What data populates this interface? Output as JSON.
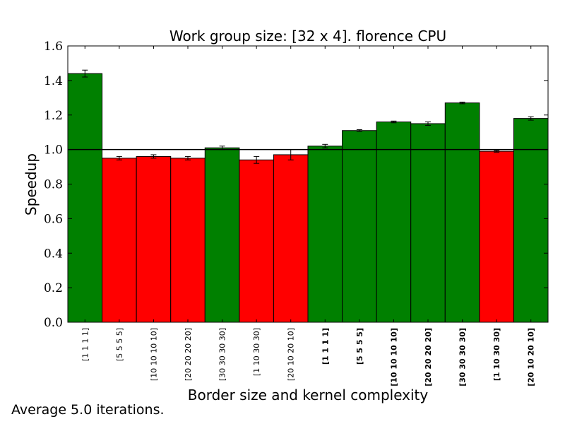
{
  "chart_data": {
    "type": "bar",
    "title": "Work group size: [32 x 4]. florence CPU",
    "xlabel": "Border size and kernel complexity",
    "ylabel": "Speedup",
    "ylim": [
      0,
      1.6
    ],
    "yticks": [
      "0.0",
      "0.2",
      "0.4",
      "0.6",
      "0.8",
      "1.0",
      "1.2",
      "1.4",
      "1.6"
    ],
    "reference_line": 1.0,
    "grid": false,
    "categories": [
      "[1 1 1 1]",
      "[5 5 5 5]",
      "[10 10 10 10]",
      "[20 20 20 20]",
      "[30 30 30 30]",
      "[1 10 30 30]",
      "[20 10 20 10]",
      "[1 1 1 1]",
      "[5 5 5 5]",
      "[10 10 10 10]",
      "[20 20 20 20]",
      "[30 30 30 30]",
      "[1 10 30 30]",
      "[20 10 20 10]"
    ],
    "category_bold": [
      false,
      false,
      false,
      false,
      false,
      false,
      false,
      true,
      true,
      true,
      true,
      true,
      true,
      true
    ],
    "values": [
      1.44,
      0.95,
      0.96,
      0.95,
      1.01,
      0.94,
      0.97,
      1.02,
      1.11,
      1.16,
      1.15,
      1.27,
      0.99,
      1.18
    ],
    "errors": [
      0.02,
      0.01,
      0.01,
      0.01,
      0.01,
      0.02,
      0.03,
      0.01,
      0.005,
      0.005,
      0.01,
      0.005,
      0.005,
      0.01
    ],
    "colors": {
      "above": "#008000",
      "below": "#ff0000"
    }
  },
  "footnote": "Average 5.0 iterations."
}
